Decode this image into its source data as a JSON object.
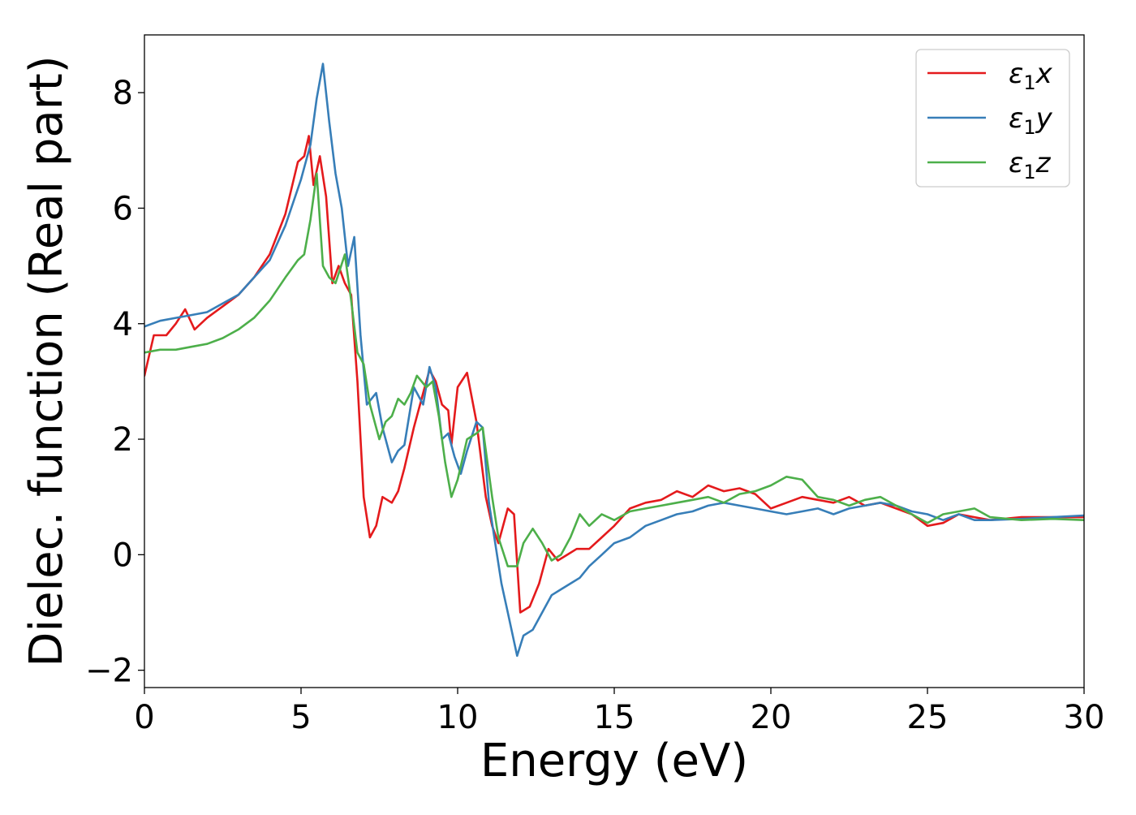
{
  "chart_data": {
    "type": "line",
    "title": "",
    "xlabel": "Energy (eV)",
    "ylabel": "Dielec. function (Real part)",
    "xlim": [
      0,
      30
    ],
    "ylim": [
      -2.3,
      9.0
    ],
    "xticks": [
      0,
      5,
      10,
      15,
      20,
      25,
      30
    ],
    "xtick_labels": [
      "0",
      "5",
      "10",
      "15",
      "20",
      "25",
      "30"
    ],
    "yticks": [
      -2,
      0,
      2,
      4,
      6,
      8
    ],
    "ytick_labels": [
      "−2",
      "0",
      "2",
      "4",
      "6",
      "8"
    ],
    "grid": false,
    "legend": "top-right",
    "series": [
      {
        "name": "ε1x",
        "symbol": "ε",
        "subscript": "1",
        "suffix": "x",
        "color": "#e41a1c",
        "x": [
          0,
          0.3,
          0.7,
          1.0,
          1.3,
          1.6,
          2.0,
          2.5,
          3.0,
          3.5,
          4.0,
          4.5,
          4.9,
          5.1,
          5.25,
          5.4,
          5.6,
          5.8,
          6.0,
          6.2,
          6.4,
          6.6,
          6.8,
          7.0,
          7.2,
          7.4,
          7.6,
          7.9,
          8.1,
          8.3,
          8.6,
          8.9,
          9.1,
          9.3,
          9.5,
          9.7,
          9.8,
          10.0,
          10.3,
          10.6,
          10.9,
          11.1,
          11.3,
          11.6,
          11.8,
          12.0,
          12.3,
          12.6,
          12.9,
          13.2,
          13.5,
          13.8,
          14.2,
          14.6,
          15.0,
          15.5,
          16.0,
          16.5,
          17.0,
          17.5,
          18.0,
          18.5,
          19.0,
          19.5,
          20.0,
          20.5,
          21.0,
          21.5,
          22.0,
          22.5,
          23.0,
          23.5,
          24.0,
          24.5,
          25.0,
          25.5,
          26.0,
          26.5,
          27.0,
          28.0,
          29.0,
          30.0
        ],
        "values": [
          3.1,
          3.8,
          3.8,
          4.0,
          4.25,
          3.9,
          4.1,
          4.3,
          4.5,
          4.8,
          5.2,
          5.9,
          6.8,
          6.9,
          7.25,
          6.4,
          6.9,
          6.2,
          4.7,
          5.0,
          4.7,
          4.5,
          3.0,
          1.0,
          0.3,
          0.5,
          1.0,
          0.9,
          1.1,
          1.5,
          2.2,
          2.8,
          3.2,
          3.0,
          2.6,
          2.5,
          1.9,
          2.9,
          3.15,
          2.3,
          1.0,
          0.5,
          0.2,
          0.8,
          0.7,
          -1.0,
          -0.9,
          -0.5,
          0.1,
          -0.1,
          0.0,
          0.1,
          0.1,
          0.3,
          0.5,
          0.8,
          0.9,
          0.95,
          1.1,
          1.0,
          1.2,
          1.1,
          1.15,
          1.05,
          0.8,
          0.9,
          1.0,
          0.95,
          0.9,
          1.0,
          0.85,
          0.9,
          0.8,
          0.7,
          0.5,
          0.55,
          0.7,
          0.65,
          0.6,
          0.65,
          0.65,
          0.65
        ]
      },
      {
        "name": "ε1y",
        "symbol": "ε",
        "subscript": "1",
        "suffix": "y",
        "color": "#377eb8",
        "x": [
          0,
          0.5,
          1.0,
          1.5,
          2.0,
          2.5,
          3.0,
          3.5,
          4.0,
          4.5,
          5.0,
          5.3,
          5.5,
          5.7,
          5.9,
          6.1,
          6.3,
          6.5,
          6.7,
          6.9,
          7.1,
          7.4,
          7.6,
          7.9,
          8.1,
          8.3,
          8.6,
          8.9,
          9.1,
          9.3,
          9.5,
          9.7,
          9.9,
          10.1,
          10.3,
          10.6,
          10.8,
          11.0,
          11.2,
          11.4,
          11.6,
          11.9,
          12.1,
          12.4,
          12.7,
          13.0,
          13.3,
          13.6,
          13.9,
          14.2,
          14.6,
          15.0,
          15.5,
          16.0,
          16.5,
          17.0,
          17.5,
          18.0,
          18.5,
          19.0,
          19.5,
          20.0,
          20.5,
          21.0,
          21.5,
          22.0,
          22.5,
          23.0,
          23.5,
          24.0,
          24.5,
          25.0,
          25.5,
          26.0,
          26.5,
          27.0,
          28.0,
          29.0,
          30.0
        ],
        "values": [
          3.95,
          4.05,
          4.1,
          4.15,
          4.2,
          4.35,
          4.5,
          4.8,
          5.1,
          5.7,
          6.5,
          7.1,
          7.9,
          8.5,
          7.5,
          6.6,
          6.0,
          5.0,
          5.5,
          3.8,
          2.6,
          2.8,
          2.2,
          1.6,
          1.8,
          1.9,
          2.9,
          2.6,
          3.25,
          2.9,
          2.0,
          2.1,
          1.7,
          1.4,
          1.8,
          2.3,
          2.2,
          0.9,
          0.2,
          -0.5,
          -1.0,
          -1.75,
          -1.4,
          -1.3,
          -1.0,
          -0.7,
          -0.6,
          -0.5,
          -0.4,
          -0.2,
          0.0,
          0.2,
          0.3,
          0.5,
          0.6,
          0.7,
          0.75,
          0.85,
          0.9,
          0.85,
          0.8,
          0.75,
          0.7,
          0.75,
          0.8,
          0.7,
          0.8,
          0.85,
          0.9,
          0.85,
          0.75,
          0.7,
          0.6,
          0.7,
          0.6,
          0.6,
          0.62,
          0.65,
          0.68
        ]
      },
      {
        "name": "ε1z",
        "symbol": "ε",
        "subscript": "1",
        "suffix": "z",
        "color": "#4daf4a",
        "x": [
          0,
          0.5,
          1.0,
          1.5,
          2.0,
          2.5,
          3.0,
          3.5,
          4.0,
          4.5,
          4.9,
          5.1,
          5.3,
          5.5,
          5.7,
          5.9,
          6.1,
          6.4,
          6.6,
          6.8,
          7.0,
          7.2,
          7.5,
          7.7,
          7.9,
          8.1,
          8.3,
          8.5,
          8.7,
          9.0,
          9.2,
          9.4,
          9.6,
          9.8,
          10.0,
          10.3,
          10.6,
          10.8,
          11.1,
          11.3,
          11.6,
          11.9,
          12.1,
          12.4,
          12.7,
          13.0,
          13.3,
          13.6,
          13.9,
          14.2,
          14.6,
          15.0,
          15.5,
          16.0,
          16.5,
          17.0,
          17.5,
          18.0,
          18.5,
          19.0,
          19.5,
          20.0,
          20.5,
          21.0,
          21.5,
          22.0,
          22.5,
          23.0,
          23.5,
          24.0,
          24.5,
          25.0,
          25.5,
          26.0,
          26.5,
          27.0,
          28.0,
          29.0,
          30.0
        ],
        "values": [
          3.5,
          3.55,
          3.55,
          3.6,
          3.65,
          3.75,
          3.9,
          4.1,
          4.4,
          4.8,
          5.1,
          5.2,
          5.8,
          6.6,
          5.0,
          4.8,
          4.7,
          5.2,
          4.4,
          3.5,
          3.3,
          2.6,
          2.0,
          2.3,
          2.4,
          2.7,
          2.6,
          2.8,
          3.1,
          2.9,
          3.0,
          2.4,
          1.6,
          1.0,
          1.3,
          2.0,
          2.1,
          2.2,
          1.0,
          0.3,
          -0.2,
          -0.2,
          0.2,
          0.45,
          0.2,
          -0.1,
          0.0,
          0.3,
          0.7,
          0.5,
          0.7,
          0.6,
          0.75,
          0.8,
          0.85,
          0.9,
          0.95,
          1.0,
          0.9,
          1.05,
          1.1,
          1.2,
          1.35,
          1.3,
          1.0,
          0.95,
          0.85,
          0.95,
          1.0,
          0.85,
          0.7,
          0.55,
          0.7,
          0.75,
          0.8,
          0.65,
          0.6,
          0.62,
          0.6
        ]
      }
    ]
  }
}
